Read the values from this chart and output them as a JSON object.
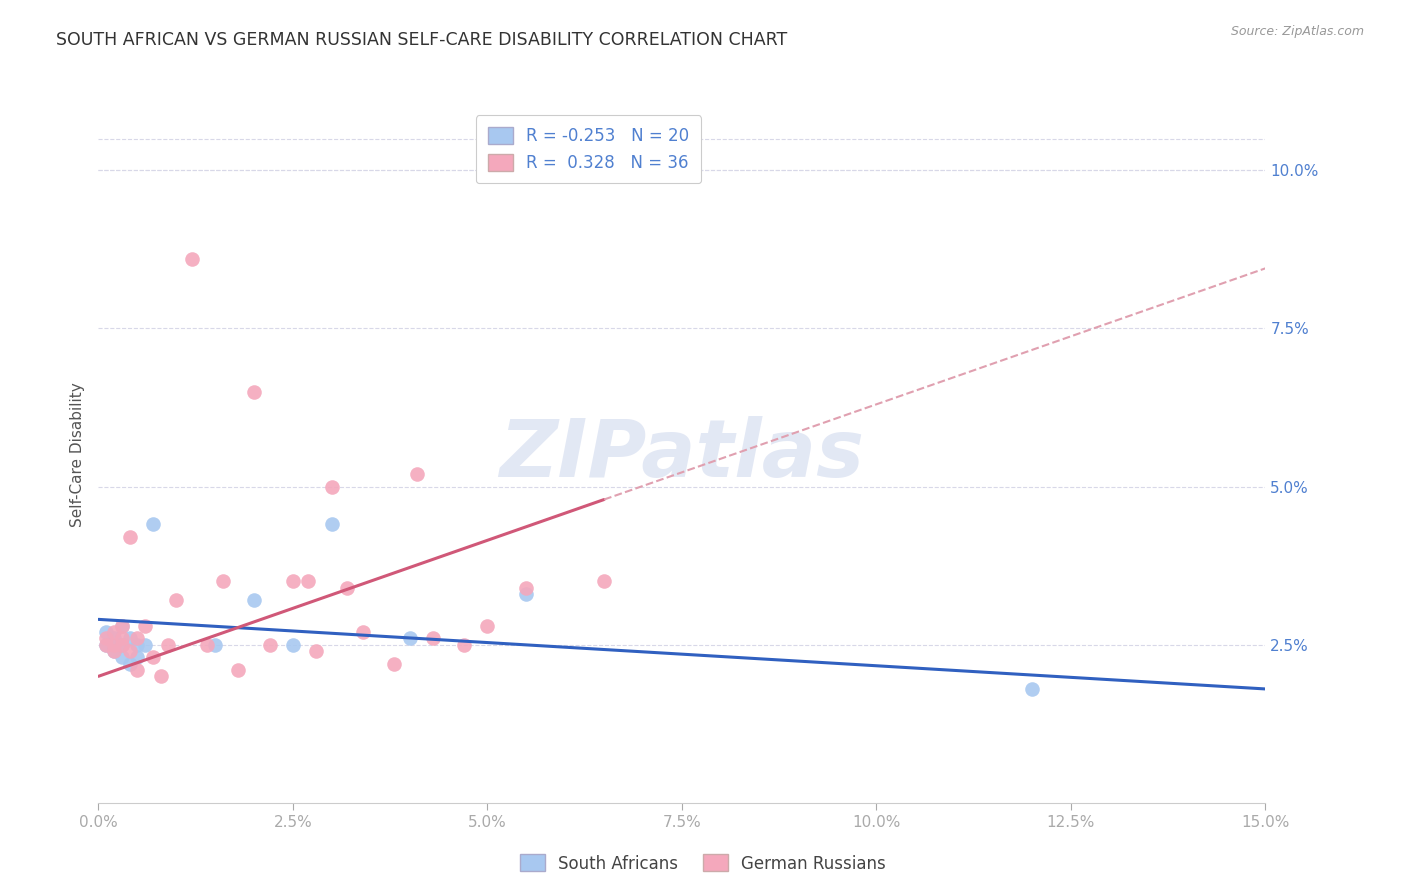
{
  "title": "SOUTH AFRICAN VS GERMAN RUSSIAN SELF-CARE DISABILITY CORRELATION CHART",
  "source": "Source: ZipAtlas.com",
  "ylabel": "Self-Care Disability",
  "xlim": [
    0.0,
    0.15
  ],
  "ylim": [
    0.0,
    0.11
  ],
  "xtick_vals": [
    0.0,
    0.025,
    0.05,
    0.075,
    0.1,
    0.125,
    0.15
  ],
  "xtick_labels": [
    "0.0%",
    "2.5%",
    "5.0%",
    "7.5%",
    "10.0%",
    "12.5%",
    "15.0%"
  ],
  "ytick_vals": [
    0.025,
    0.05,
    0.075,
    0.1
  ],
  "ytick_labels": [
    "2.5%",
    "5.0%",
    "7.5%",
    "10.0%"
  ],
  "blue_color": "#a8c8f0",
  "pink_color": "#f4a8bc",
  "blue_line_color": "#3060c0",
  "pink_line_color": "#d05878",
  "pink_dash_color": "#e0a0b0",
  "grid_color": "#d8d8e8",
  "text_blue": "#5080d0",
  "text_dark": "#404040",
  "watermark": "ZIPatlas",
  "legend_line1_r": "R = -0.253",
  "legend_line1_n": "N = 20",
  "legend_line2_r": "R =  0.328",
  "legend_line2_n": "N = 36",
  "south_africans_x": [
    0.001,
    0.001,
    0.002,
    0.002,
    0.003,
    0.003,
    0.003,
    0.004,
    0.004,
    0.005,
    0.005,
    0.006,
    0.007,
    0.015,
    0.02,
    0.025,
    0.03,
    0.04,
    0.055,
    0.12
  ],
  "south_africans_y": [
    0.025,
    0.027,
    0.024,
    0.026,
    0.025,
    0.023,
    0.028,
    0.022,
    0.026,
    0.025,
    0.023,
    0.025,
    0.044,
    0.025,
    0.032,
    0.025,
    0.044,
    0.026,
    0.033,
    0.018
  ],
  "german_russians_x": [
    0.001,
    0.001,
    0.002,
    0.002,
    0.002,
    0.003,
    0.003,
    0.003,
    0.004,
    0.004,
    0.005,
    0.005,
    0.006,
    0.007,
    0.008,
    0.009,
    0.01,
    0.012,
    0.014,
    0.016,
    0.018,
    0.02,
    0.022,
    0.025,
    0.027,
    0.028,
    0.03,
    0.032,
    0.034,
    0.038,
    0.041,
    0.043,
    0.047,
    0.05,
    0.055,
    0.065
  ],
  "german_russians_y": [
    0.026,
    0.025,
    0.025,
    0.027,
    0.024,
    0.026,
    0.028,
    0.025,
    0.024,
    0.042,
    0.026,
    0.021,
    0.028,
    0.023,
    0.02,
    0.025,
    0.032,
    0.086,
    0.025,
    0.035,
    0.021,
    0.065,
    0.025,
    0.035,
    0.035,
    0.024,
    0.05,
    0.034,
    0.027,
    0.022,
    0.052,
    0.026,
    0.025,
    0.028,
    0.034,
    0.035
  ]
}
